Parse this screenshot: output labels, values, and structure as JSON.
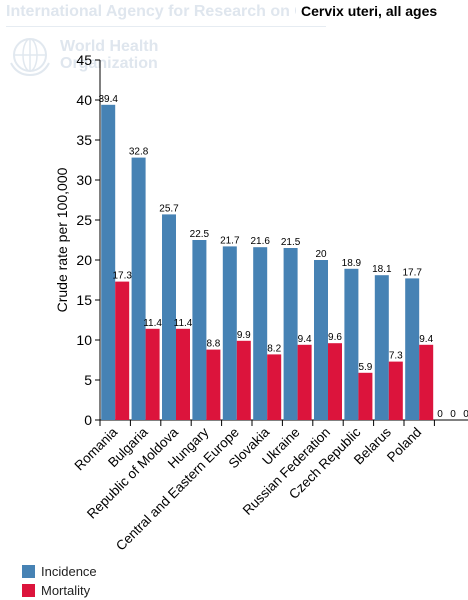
{
  "header": {
    "org_text": "International Agency for Research on Cancer",
    "who_line1": "World Health",
    "who_line2": "Organization"
  },
  "chart_data": {
    "type": "bar",
    "title": "Cervix uteri, all ages",
    "ylabel": "Crude rate per 100,000",
    "xlabel": "",
    "ylim": [
      0,
      45
    ],
    "yticks": [
      0,
      5,
      10,
      15,
      20,
      25,
      30,
      35,
      40,
      45
    ],
    "grid": false,
    "legend_position": "bottom-left",
    "categories": [
      "Romania",
      "Bulgaria",
      "Republic of Moldova",
      "Hungary",
      "Central and Eastern Europe",
      "Slovakia",
      "Ukraine",
      "Russian Federation",
      "Czech Republic",
      "Belarus",
      "Poland"
    ],
    "series": [
      {
        "name": "Incidence",
        "color": "#4682b4",
        "values": [
          39.4,
          32.8,
          25.7,
          22.5,
          21.7,
          21.6,
          21.5,
          20,
          18.9,
          18.1,
          17.7
        ]
      },
      {
        "name": "Mortality",
        "color": "#dc143c",
        "values": [
          17.3,
          11.4,
          11.4,
          8.8,
          9.9,
          8.2,
          9.4,
          9.6,
          5.9,
          7.3,
          9.4
        ]
      }
    ],
    "extra_labels": [
      "0",
      "0",
      "0"
    ]
  }
}
